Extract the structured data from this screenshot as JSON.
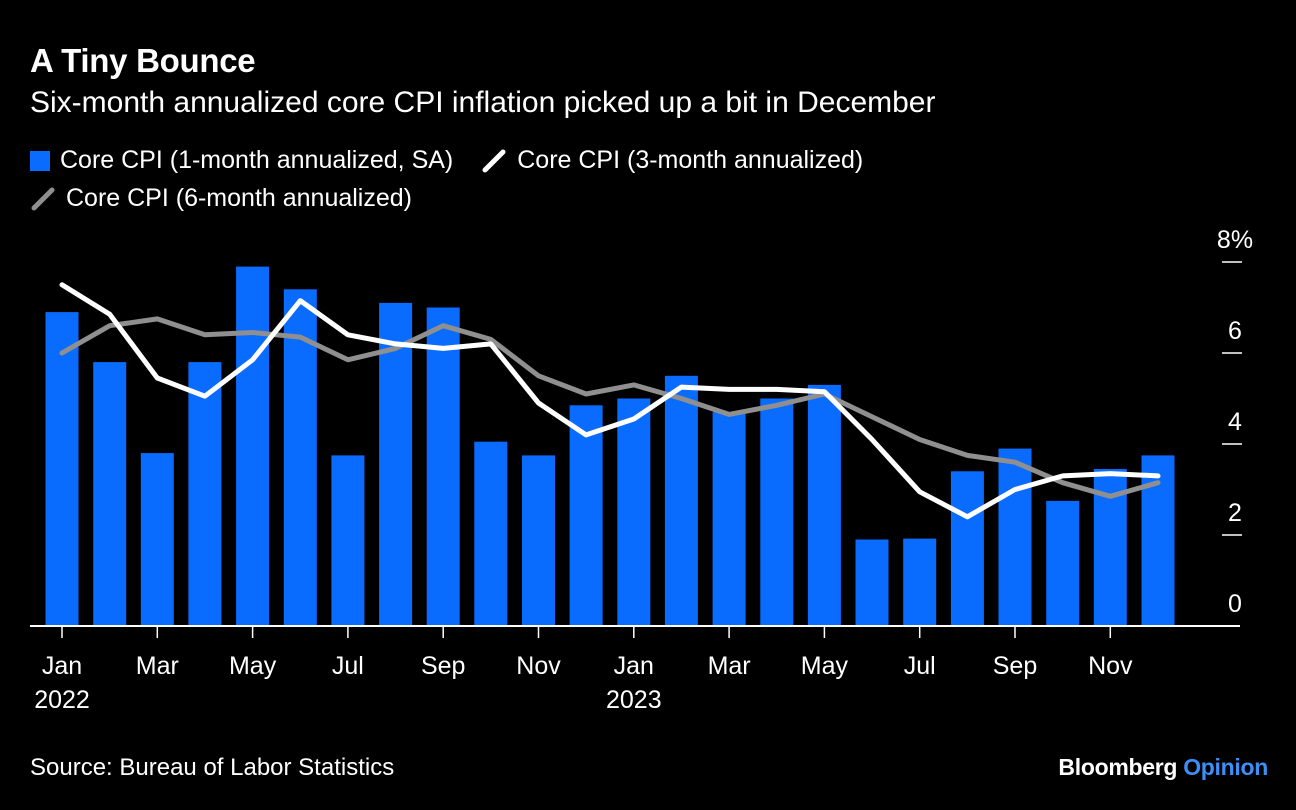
{
  "header": {
    "title": "A Tiny Bounce",
    "subtitle": "Six-month annualized core CPI inflation picked up a bit in December"
  },
  "legend": {
    "bars_label": "Core CPI (1-month annualized, SA)",
    "line3_label": "Core CPI (3-month annualized)",
    "line6_label": "Core CPI (6-month annualized)"
  },
  "footer": {
    "source": "Source: Bureau of Labor Statistics",
    "brand_primary": "Bloomberg",
    "brand_secondary": "Opinion"
  },
  "colors": {
    "background": "#000000",
    "bars": "#0a6cff",
    "line3": "#ffffff",
    "line6": "#8f8f8f",
    "brand_accent": "#3e8ef7"
  },
  "chart_data": {
    "type": "bar",
    "categories": [
      "2022-01",
      "2022-02",
      "2022-03",
      "2022-04",
      "2022-05",
      "2022-06",
      "2022-07",
      "2022-08",
      "2022-09",
      "2022-10",
      "2022-11",
      "2022-12",
      "2023-01",
      "2023-02",
      "2023-03",
      "2023-04",
      "2023-05",
      "2023-06",
      "2023-07",
      "2023-08",
      "2023-09",
      "2023-10",
      "2023-11",
      "2023-12"
    ],
    "x_tick_labels": [
      {
        "index": 0,
        "label": "Jan",
        "year": "2022"
      },
      {
        "index": 2,
        "label": "Mar",
        "year": ""
      },
      {
        "index": 4,
        "label": "May",
        "year": ""
      },
      {
        "index": 6,
        "label": "Jul",
        "year": ""
      },
      {
        "index": 8,
        "label": "Sep",
        "year": ""
      },
      {
        "index": 10,
        "label": "Nov",
        "year": ""
      },
      {
        "index": 12,
        "label": "Jan",
        "year": "2023"
      },
      {
        "index": 14,
        "label": "Mar",
        "year": ""
      },
      {
        "index": 16,
        "label": "May",
        "year": ""
      },
      {
        "index": 18,
        "label": "Jul",
        "year": ""
      },
      {
        "index": 20,
        "label": "Sep",
        "year": ""
      },
      {
        "index": 22,
        "label": "Nov",
        "year": ""
      }
    ],
    "y_ticks": [
      {
        "value": 0,
        "label": "0"
      },
      {
        "value": 2,
        "label": "2"
      },
      {
        "value": 4,
        "label": "4"
      },
      {
        "value": 6,
        "label": "6"
      },
      {
        "value": 8,
        "label": "8%"
      }
    ],
    "ylim": [
      0,
      8
    ],
    "y_axis_side": "right",
    "series": [
      {
        "name": "Core CPI (1-month annualized, SA)",
        "kind": "bar",
        "values": [
          6.9,
          5.8,
          3.8,
          5.8,
          7.9,
          7.4,
          3.75,
          7.1,
          7.0,
          4.05,
          3.75,
          4.85,
          5.0,
          5.5,
          4.7,
          5.0,
          5.3,
          1.9,
          1.92,
          3.4,
          3.9,
          2.75,
          3.45,
          3.75
        ]
      },
      {
        "name": "Core CPI (3-month annualized)",
        "kind": "line",
        "values": [
          7.5,
          6.85,
          5.45,
          5.05,
          5.85,
          7.15,
          6.4,
          6.2,
          6.1,
          6.2,
          4.9,
          4.2,
          4.55,
          5.25,
          5.2,
          5.2,
          5.15,
          4.1,
          2.95,
          2.4,
          3.0,
          3.3,
          3.35,
          3.3
        ]
      },
      {
        "name": "Core CPI (6-month annualized)",
        "kind": "line",
        "values": [
          6.0,
          6.6,
          6.75,
          6.4,
          6.45,
          6.35,
          5.85,
          6.1,
          6.6,
          6.3,
          5.5,
          5.1,
          5.3,
          5.0,
          4.65,
          4.85,
          5.1,
          4.6,
          4.1,
          3.75,
          3.6,
          3.15,
          2.85,
          3.15
        ]
      }
    ],
    "grid": false
  }
}
